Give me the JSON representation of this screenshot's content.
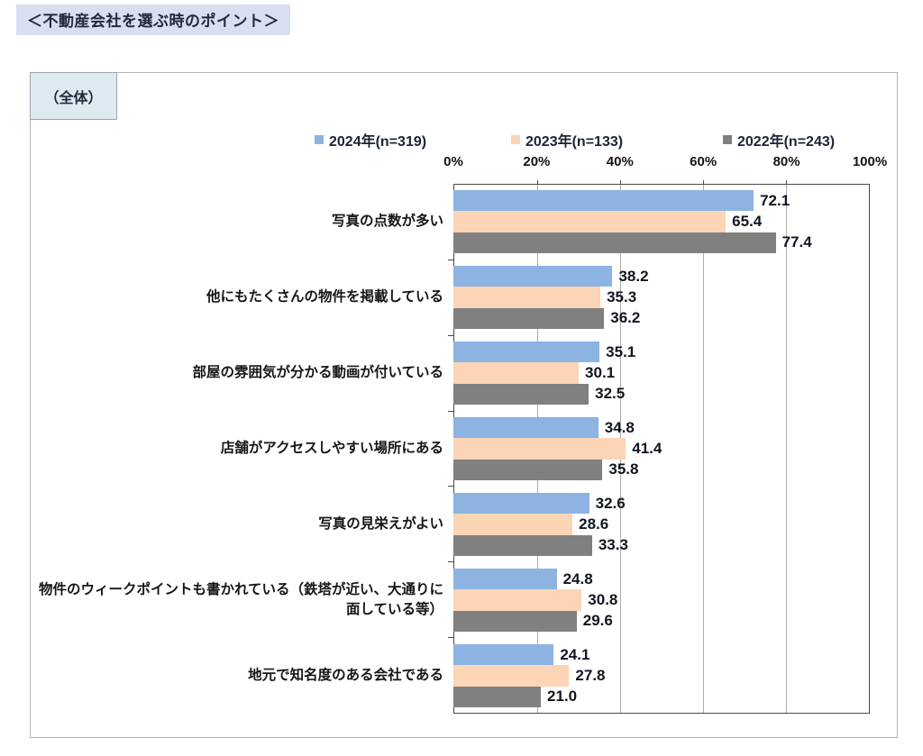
{
  "page": {
    "title": "＜不動産会社を選ぶ時のポイント＞",
    "scope_label": "（全体）"
  },
  "chart_data": {
    "type": "bar",
    "orientation": "horizontal",
    "title": "＜不動産会社を選ぶ時のポイント＞",
    "subtitle": "（全体）",
    "categories": [
      "写真の点数が多い",
      "他にもたくさんの物件を掲載している",
      "部屋の雰囲気が分かる動画が付いている",
      "店舗がアクセスしやすい場所にある",
      "写真の見栄えがよい",
      "物件のウィークポイントも書かれている（鉄塔が近い、大通りに面している等）",
      "地元で知名度のある会社である"
    ],
    "series": [
      {
        "name": "2024年(n=319)",
        "color": "#8DB3E2",
        "values": [
          72.1,
          38.2,
          35.1,
          34.8,
          32.6,
          24.8,
          24.1
        ]
      },
      {
        "name": "2023年(n=133)",
        "color": "#FBD5B5",
        "values": [
          65.4,
          35.3,
          30.1,
          41.4,
          28.6,
          30.8,
          27.8
        ]
      },
      {
        "name": "2022年(n=243)",
        "color": "#808080",
        "values": [
          77.4,
          36.2,
          32.5,
          35.8,
          33.3,
          29.6,
          21.0
        ]
      }
    ],
    "x_axis": {
      "tick_labels": [
        "0%",
        "20%",
        "40%",
        "60%",
        "80%",
        "100%"
      ],
      "min": 0,
      "max": 100,
      "grid": true
    },
    "value_label_decimals": 1,
    "legend_position": "top"
  }
}
